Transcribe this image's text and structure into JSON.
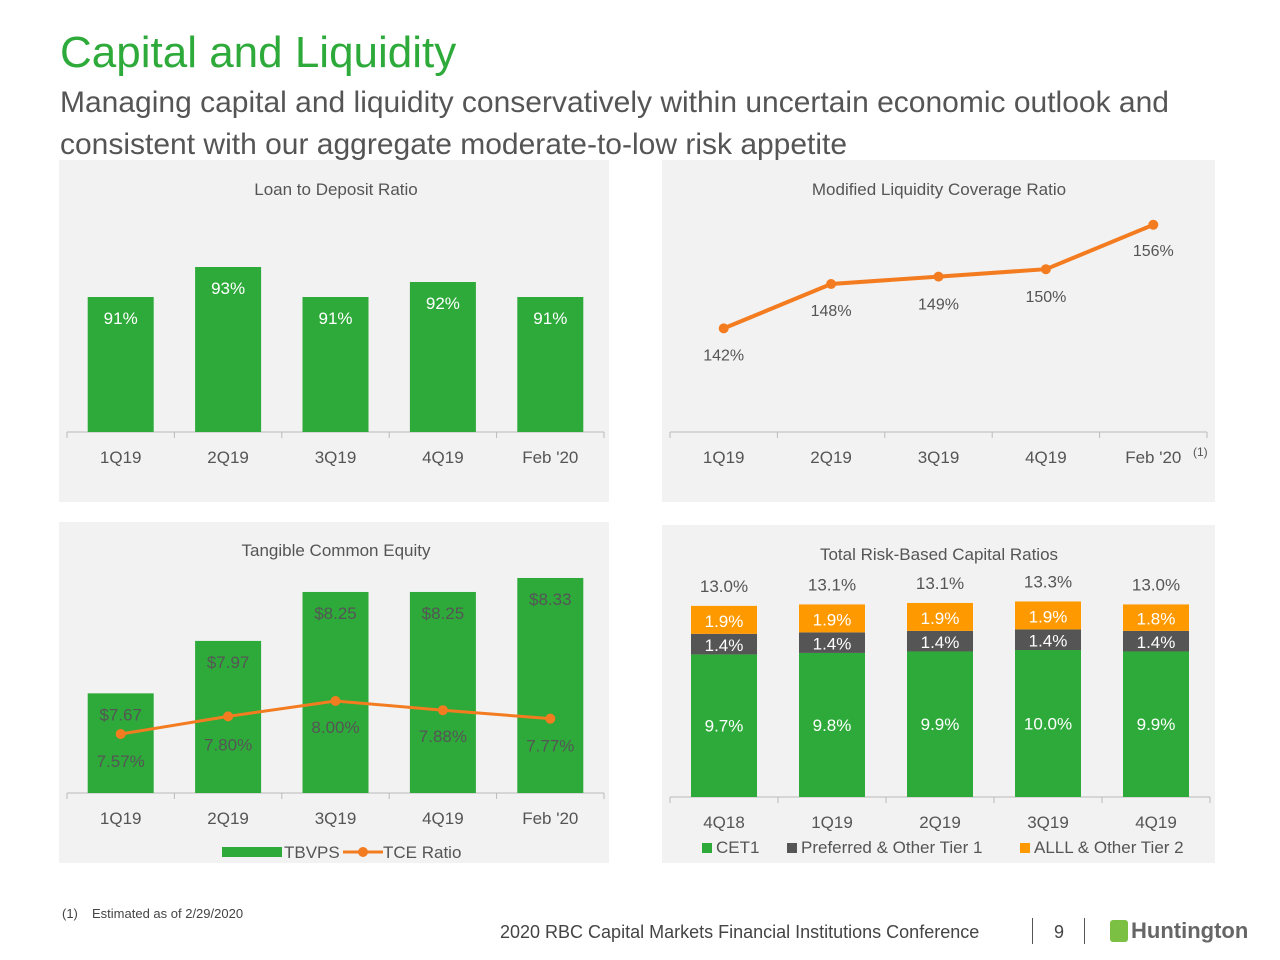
{
  "header": {
    "title": "Capital and Liquidity",
    "subtitle": "Managing capital and liquidity conservatively within uncertain economic outlook and consistent with our aggregate moderate-to-low risk appetite"
  },
  "colors": {
    "green": "#2eaa3a",
    "orange": "#f47c20",
    "gray": "#555555",
    "gold": "#ff9900",
    "panel": "#f2f2f2"
  },
  "chart_data": [
    {
      "type": "bar",
      "title": "Loan to Deposit Ratio",
      "categories": [
        "1Q19",
        "2Q19",
        "3Q19",
        "4Q19",
        "Feb '20"
      ],
      "values": [
        91,
        93,
        91,
        92,
        91
      ],
      "labels": [
        "91%",
        "93%",
        "91%",
        "92%",
        "91%"
      ],
      "ylim": [
        82,
        94
      ]
    },
    {
      "type": "line",
      "title": "Modified Liquidity Coverage Ratio",
      "categories": [
        "1Q19",
        "2Q19",
        "3Q19",
        "4Q19",
        "Feb '20"
      ],
      "category_footnote": "(1)",
      "values": [
        142,
        148,
        149,
        150,
        156
      ],
      "labels": [
        "142%",
        "148%",
        "149%",
        "150%",
        "156%"
      ],
      "ylim": [
        128,
        158
      ]
    },
    {
      "type": "bar",
      "title": "Tangible Common Equity",
      "categories": [
        "1Q19",
        "2Q19",
        "3Q19",
        "4Q19",
        "Feb '20"
      ],
      "series": [
        {
          "name": "TBVPS",
          "type": "bar",
          "values": [
            7.67,
            7.97,
            8.25,
            8.25,
            8.33
          ],
          "labels": [
            "$7.67",
            "$7.97",
            "$8.25",
            "$8.25",
            "$8.33"
          ],
          "ylim": [
            7.1,
            8.45
          ]
        },
        {
          "name": "TCE Ratio",
          "type": "line",
          "values": [
            7.57,
            7.8,
            8.0,
            7.88,
            7.77
          ],
          "labels": [
            "7.57%",
            "7.80%",
            "8.00%",
            "7.88%",
            "7.77%"
          ]
        }
      ],
      "legend": "bottom"
    },
    {
      "type": "bar",
      "stacked": true,
      "title": "Total Risk-Based Capital Ratios",
      "categories": [
        "4Q18",
        "1Q19",
        "2Q19",
        "3Q19",
        "4Q19"
      ],
      "series": [
        {
          "name": "CET1",
          "values": [
            9.7,
            9.8,
            9.9,
            10.0,
            9.9
          ],
          "labels": [
            "9.7%",
            "9.8%",
            "9.9%",
            "10.0%",
            "9.9%"
          ]
        },
        {
          "name": "Preferred & Other Tier 1",
          "values": [
            1.4,
            1.4,
            1.4,
            1.4,
            1.4
          ],
          "labels": [
            "1.4%",
            "1.4%",
            "1.4%",
            "1.4%",
            "1.4%"
          ]
        },
        {
          "name": "ALLL & Other Tier 2",
          "values": [
            1.9,
            1.9,
            1.9,
            1.9,
            1.8
          ],
          "labels": [
            "1.9%",
            "1.9%",
            "1.9%",
            "1.9%",
            "1.8%"
          ]
        }
      ],
      "totals": [
        "13.0%",
        "13.1%",
        "13.1%",
        "13.3%",
        "13.0%"
      ],
      "legend": "bottom"
    }
  ],
  "footer": {
    "footnote_marker": "(1)",
    "footnote": "Estimated as of 2/29/2020",
    "conference": "2020 RBC Capital Markets Financial Institutions Conference",
    "page": "9",
    "logo": "Huntington"
  }
}
